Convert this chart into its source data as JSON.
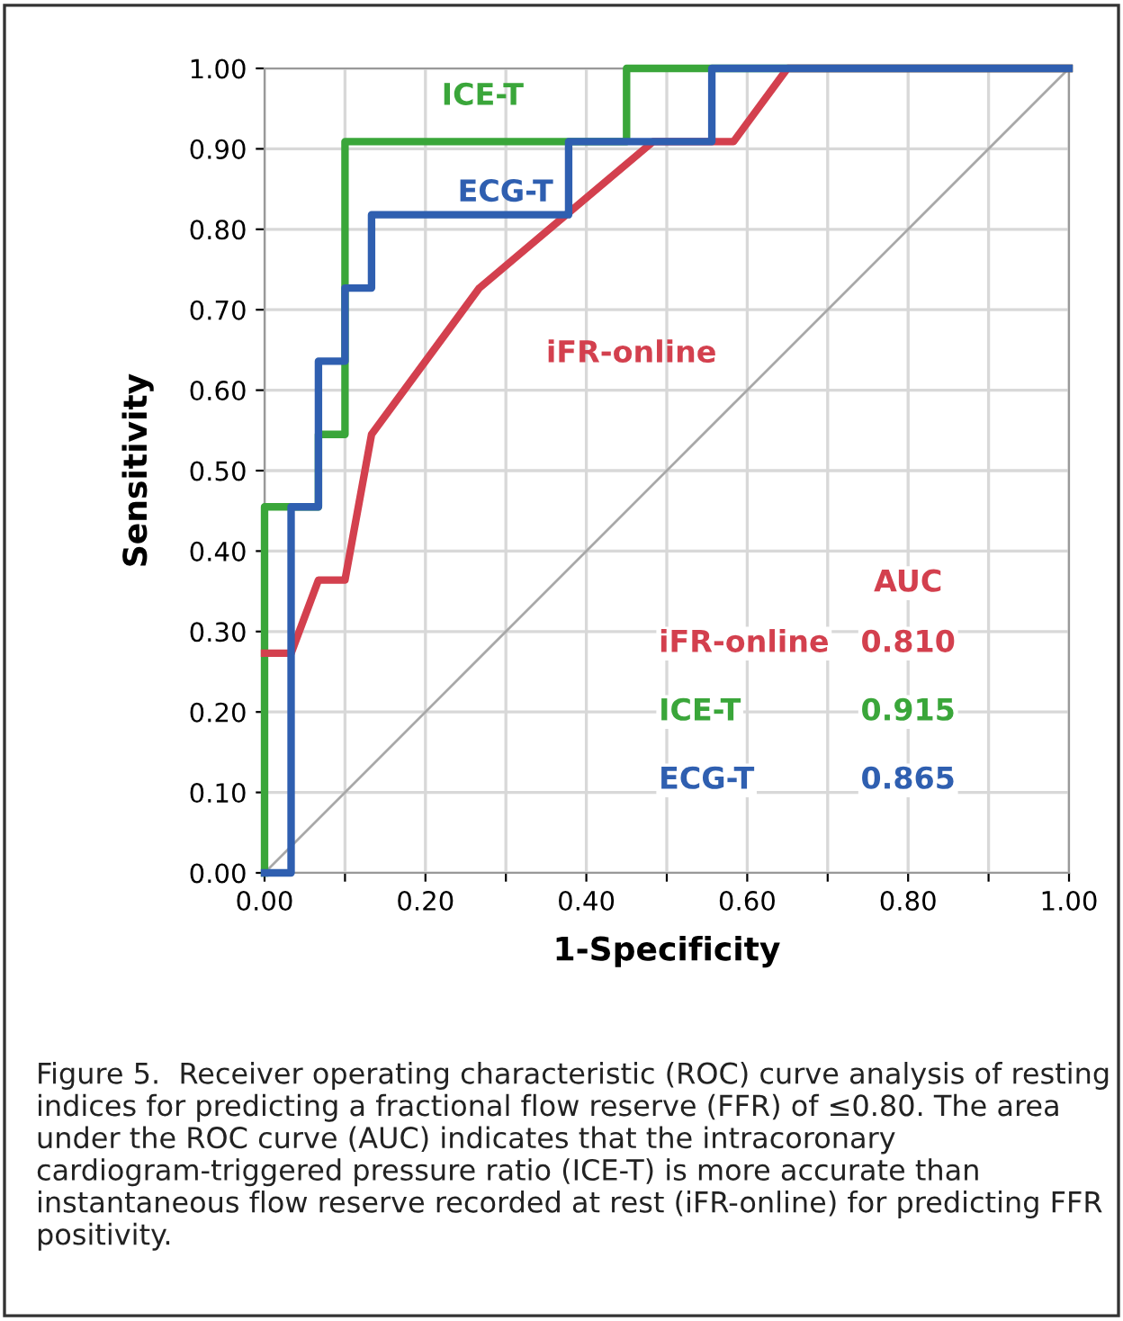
{
  "chart_data": {
    "type": "line",
    "xlabel": "1-Specificity",
    "ylabel": "Sensitivity",
    "xlim": [
      0,
      1
    ],
    "ylim": [
      0,
      1
    ],
    "xticks": [
      {
        "value": 0,
        "label": "0.00"
      },
      {
        "value": 0.1,
        "label": null
      },
      {
        "value": 0.2,
        "label": "0.20"
      },
      {
        "value": 0.3,
        "label": null
      },
      {
        "value": 0.4,
        "label": "0.40"
      },
      {
        "value": 0.5,
        "label": null
      },
      {
        "value": 0.6,
        "label": "0.60"
      },
      {
        "value": 0.7,
        "label": null
      },
      {
        "value": 0.8,
        "label": "0.80"
      },
      {
        "value": 0.9,
        "label": null
      },
      {
        "value": 1,
        "label": "1.00"
      }
    ],
    "yticks": [
      {
        "value": 0,
        "label": "0.00"
      },
      {
        "value": 0.1,
        "label": "0.10"
      },
      {
        "value": 0.2,
        "label": "0.20"
      },
      {
        "value": 0.3,
        "label": "0.30"
      },
      {
        "value": 0.4,
        "label": "0.40"
      },
      {
        "value": 0.5,
        "label": "0.50"
      },
      {
        "value": 0.6,
        "label": "0.60"
      },
      {
        "value": 0.7,
        "label": "0.70"
      },
      {
        "value": 0.8,
        "label": "0.80"
      },
      {
        "value": 0.9,
        "label": "0.90"
      },
      {
        "value": 1,
        "label": "1.00"
      }
    ],
    "grid": true,
    "line_style": "solid",
    "marker": "none",
    "series": [
      {
        "color": "#a8a8a8",
        "x": [
          0,
          1
        ],
        "values": [
          0,
          1
        ]
      },
      {
        "name": "ICE-T",
        "color": "#3aa63a",
        "x": [
          0,
          0,
          0.067,
          0.067,
          0.1,
          0.1,
          0.45,
          0.45,
          1
        ],
        "values": [
          0,
          0.455,
          0.455,
          0.545,
          0.545,
          0.909,
          0.909,
          1,
          1
        ]
      },
      {
        "name": "iFR-online",
        "color": "#d3404e",
        "x": [
          0,
          0.033,
          0.067,
          0.1,
          0.133,
          0.267,
          0.483,
          0.583,
          0.65,
          1
        ],
        "values": [
          0.273,
          0.273,
          0.364,
          0.364,
          0.545,
          0.727,
          0.909,
          0.909,
          1,
          1
        ]
      },
      {
        "name": "ECG-T",
        "color": "#2f5fb0",
        "x": [
          0,
          0.033,
          0.033,
          0.067,
          0.067,
          0.1,
          0.1,
          0.133,
          0.133,
          0.378,
          0.378,
          0.556,
          0.556,
          1
        ],
        "values": [
          0,
          0,
          0.455,
          0.455,
          0.636,
          0.636,
          0.727,
          0.727,
          0.818,
          0.818,
          0.909,
          0.909,
          1,
          1
        ]
      }
    ],
    "annotations": [
      "AUC",
      "iFR-online",
      "0.810",
      "ICE-T",
      "0.915",
      "ECG-T",
      "0.865",
      "Figure 5.  Receiver operating characteristic (ROC) curve analysis of resting indices for predicting a fractional flow reserve (FFR) of ≤0.80. The area under the ROC curve (AUC) indicates that the intracoronary cardiogram-triggered pressure ratio (ICE-T) is more accurate than instantaneous flow reserve recorded at rest (iFR-online) for predicting FFR positivity."
    ]
  }
}
